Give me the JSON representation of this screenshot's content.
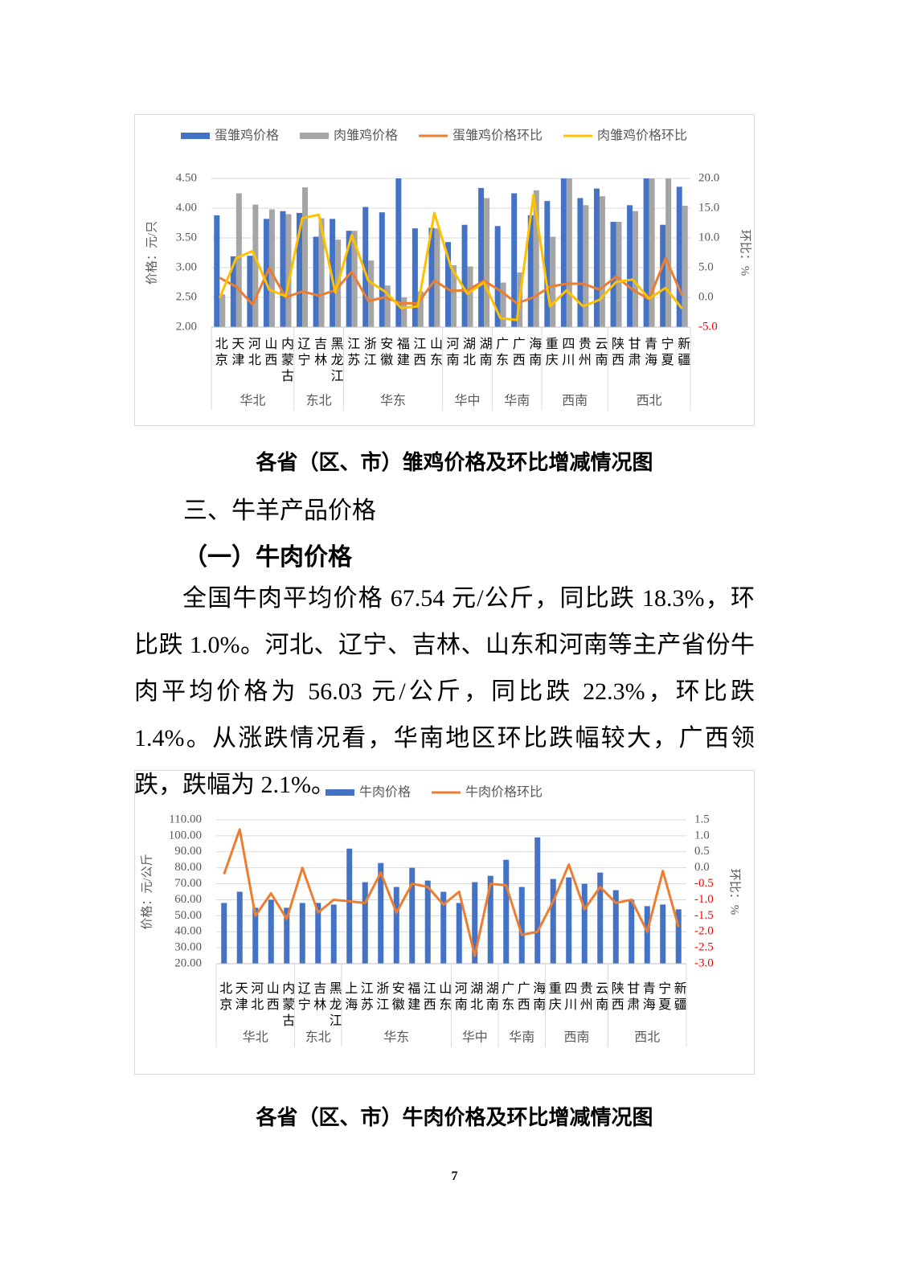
{
  "document": {
    "caption_1": "各省（区、市）雏鸡价格及环比增减情况图",
    "section_heading": "三、牛羊产品价格",
    "subsection_heading": "（一）牛肉价格",
    "paragraph": "全国牛肉平均价格 67.54 元/公斤，同比跌 18.3%，环比跌 1.0%。河北、辽宁、吉林、山东和河南等主产省份牛肉平均价格为 56.03 元/公斤，同比跌 22.3%，环比跌 1.4%。从涨跌情况看，华南地区环比跌幅较大，广西领跌，跌幅为 2.1%。",
    "caption_2": "各省（区、市）牛肉价格及环比增减情况图",
    "page_number": "7"
  },
  "chart_data": [
    {
      "type": "bar",
      "ylabel": "价格：元/只",
      "y2label": "环比：%",
      "groups": [
        {
          "name": "华北",
          "categories": [
            "北京",
            "天津",
            "河北",
            "山西",
            "内蒙古"
          ]
        },
        {
          "name": "东北",
          "categories": [
            "辽宁",
            "吉林",
            "黑龙江"
          ]
        },
        {
          "name": "华东",
          "categories": [
            "江苏",
            "浙江",
            "安徽",
            "福建",
            "江西",
            "山东"
          ]
        },
        {
          "name": "华中",
          "categories": [
            "河南",
            "湖北",
            "湖南"
          ]
        },
        {
          "name": "华南",
          "categories": [
            "广东",
            "广西",
            "海南"
          ]
        },
        {
          "name": "西南",
          "categories": [
            "重庆",
            "四川",
            "贵州",
            "云南"
          ]
        },
        {
          "name": "西北",
          "categories": [
            "陕西",
            "甘肃",
            "青海",
            "宁夏",
            "新疆"
          ]
        }
      ],
      "series": [
        {
          "name": "蛋雏鸡价格",
          "type": "bar",
          "color": "#4472c4",
          "values": [
            3.88,
            3.19,
            3.2,
            3.82,
            3.95,
            3.92,
            3.52,
            3.82,
            3.62,
            4.02,
            3.93,
            4.5,
            3.66,
            3.67,
            3.43,
            3.72,
            4.34,
            3.7,
            4.25,
            3.88,
            4.12,
            4.5,
            4.17,
            4.33,
            3.77,
            4.05,
            4.5,
            3.72,
            4.36
          ]
        },
        {
          "name": "肉雏鸡价格",
          "type": "bar",
          "color": "#a5a5a5",
          "values": [
            2.55,
            4.25,
            4.06,
            3.98,
            3.9,
            4.35,
            3.83,
            3.47,
            3.62,
            3.12,
            2.7,
            2.5,
            2.6,
            3.66,
            3.04,
            3.02,
            4.17,
            2.75,
            2.92,
            4.3,
            3.52,
            4.5,
            4.05,
            4.2,
            3.77,
            3.95,
            4.5,
            4.5,
            4.04
          ]
        },
        {
          "name": "蛋雏鸡价格环比",
          "type": "line",
          "axis": "y2",
          "color": "#ed7d31",
          "values": [
            3.3,
            1.8,
            -1.2,
            4.9,
            0.0,
            1.0,
            0.3,
            1.2,
            4.3,
            -0.6,
            0.0,
            -1.0,
            -1.0,
            2.8,
            1.1,
            1.2,
            2.8,
            1.1,
            -1.0,
            0.0,
            1.8,
            2.3,
            2.3,
            1.3,
            3.5,
            1.3,
            -0.3,
            6.6,
            0.3
          ]
        },
        {
          "name": "肉雏鸡价格环比",
          "type": "line",
          "axis": "y2",
          "color": "#ffc000",
          "values": [
            -0.1,
            6.6,
            7.8,
            1.3,
            0.2,
            13.3,
            13.9,
            0.8,
            10.5,
            2.8,
            1.0,
            -1.8,
            -1.5,
            14.2,
            5.1,
            0.6,
            2.5,
            -3.5,
            -3.8,
            17.2,
            -1.5,
            1.2,
            -1.5,
            -0.4,
            2.6,
            3.0,
            -0.2,
            1.6,
            -1.9
          ]
        }
      ],
      "ylim": [
        2,
        4.5
      ],
      "yticks": [
        {
          "value": 2,
          "label": "2.00"
        },
        {
          "value": 2.5,
          "label": "2.50"
        },
        {
          "value": 3,
          "label": "3.00"
        },
        {
          "value": 3.5,
          "label": "3.50"
        },
        {
          "value": 4,
          "label": "4.00"
        },
        {
          "value": 4.5,
          "label": "4.50"
        }
      ],
      "y2lim": [
        -5,
        20
      ],
      "y2ticks": [
        {
          "value": -5,
          "label": "-5.0"
        },
        {
          "value": 0,
          "label": "0.0"
        },
        {
          "value": 5,
          "label": "5.0"
        },
        {
          "value": 10,
          "label": "10.0"
        },
        {
          "value": 15,
          "label": "15.0"
        },
        {
          "value": 20,
          "label": "20.0"
        }
      ],
      "y2_negative_tick_color": "#ff0000",
      "grid": true,
      "legend": "top"
    },
    {
      "type": "bar",
      "ylabel": "价格：元/公斤",
      "y2label": "环比：%",
      "groups": [
        {
          "name": "华北",
          "categories": [
            "北京",
            "天津",
            "河北",
            "山西",
            "内蒙古"
          ]
        },
        {
          "name": "东北",
          "categories": [
            "辽宁",
            "吉林",
            "黑龙江"
          ]
        },
        {
          "name": "华东",
          "categories": [
            "上海",
            "江苏",
            "浙江",
            "安徽",
            "福建",
            "江西",
            "山东"
          ]
        },
        {
          "name": "华中",
          "categories": [
            "河南",
            "湖北",
            "湖南"
          ]
        },
        {
          "name": "华南",
          "categories": [
            "广东",
            "广西",
            "海南"
          ]
        },
        {
          "name": "西南",
          "categories": [
            "重庆",
            "四川",
            "贵州",
            "云南"
          ]
        },
        {
          "name": "西北",
          "categories": [
            "陕西",
            "甘肃",
            "青海",
            "宁夏",
            "新疆"
          ]
        }
      ],
      "series": [
        {
          "name": "牛肉价格",
          "type": "bar",
          "color": "#4472c4",
          "values": [
            58,
            65,
            55,
            60,
            55,
            58,
            58,
            57,
            92,
            71,
            83,
            68,
            80,
            72,
            65,
            58,
            71,
            75,
            85,
            68,
            99,
            73,
            74,
            70,
            77,
            66,
            60,
            56,
            57,
            54
          ]
        },
        {
          "name": "牛肉价格环比",
          "type": "line",
          "axis": "y2",
          "color": "#ed7d31",
          "values": [
            -0.2,
            1.2,
            -1.5,
            -0.8,
            -1.6,
            0.0,
            -1.4,
            -1.0,
            -1.05,
            -1.1,
            -0.15,
            -1.4,
            -0.5,
            -0.6,
            -1.15,
            -0.75,
            -2.75,
            -0.5,
            -0.55,
            -2.1,
            -2.0,
            -1.05,
            0.1,
            -1.3,
            -0.6,
            -1.1,
            -1.0,
            -2.0,
            -0.1,
            -1.85
          ]
        }
      ],
      "ylim": [
        20,
        110
      ],
      "yticks": [
        {
          "value": 20,
          "label": "20.00"
        },
        {
          "value": 30,
          "label": "30.00"
        },
        {
          "value": 40,
          "label": "40.00"
        },
        {
          "value": 50,
          "label": "50.00"
        },
        {
          "value": 60,
          "label": "60.00"
        },
        {
          "value": 70,
          "label": "70.00"
        },
        {
          "value": 80,
          "label": "80.00"
        },
        {
          "value": 90,
          "label": "90.00"
        },
        {
          "value": 100,
          "label": "100.00"
        },
        {
          "value": 110,
          "label": "110.00"
        }
      ],
      "y2lim": [
        -3,
        1.5
      ],
      "y2ticks": [
        {
          "value": -3,
          "label": "-3.0"
        },
        {
          "value": -2.5,
          "label": "-2.5"
        },
        {
          "value": -2,
          "label": "-2.0"
        },
        {
          "value": -1.5,
          "label": "-1.5"
        },
        {
          "value": -1,
          "label": "-1.0"
        },
        {
          "value": -0.5,
          "label": "-0.5"
        },
        {
          "value": 0,
          "label": "0.0"
        },
        {
          "value": 0.5,
          "label": "0.5"
        },
        {
          "value": 1,
          "label": "1.0"
        },
        {
          "value": 1.5,
          "label": "1.5"
        }
      ],
      "y2_negative_tick_color": "#ff0000",
      "grid": true,
      "legend": "top"
    }
  ]
}
